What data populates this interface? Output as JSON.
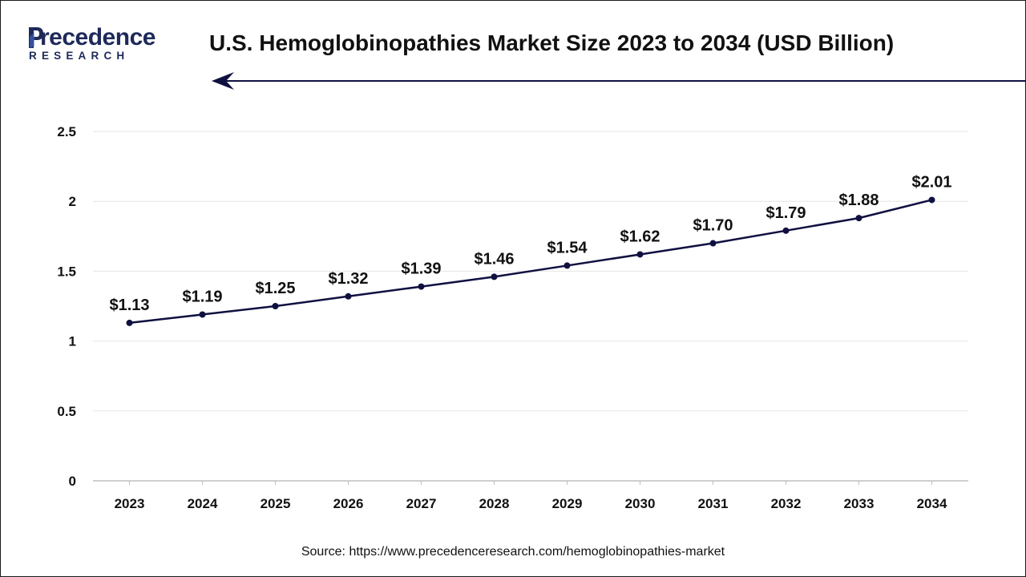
{
  "brand": {
    "name_main": "recedence",
    "name_sub": "RESEARCH",
    "logo_color": "#1e2a5a"
  },
  "source_label": "Source: https://www.precedenceresearch.com/hemoglobinopathies-market",
  "colors": {
    "line": "#0f1040",
    "grid": "#e6e6e6",
    "axis": "#bfbfbf",
    "text": "#111111"
  },
  "chart_data": {
    "type": "line",
    "title": "U.S. Hemoglobinopathies Market Size 2023 to 2034 (USD Billion)",
    "xlabel": "",
    "ylabel": "",
    "categories": [
      "2023",
      "2024",
      "2025",
      "2026",
      "2027",
      "2028",
      "2029",
      "2030",
      "2031",
      "2032",
      "2033",
      "2034"
    ],
    "series": [
      {
        "values": [
          1.13,
          1.19,
          1.25,
          1.32,
          1.39,
          1.46,
          1.54,
          1.62,
          1.7,
          1.79,
          1.88,
          2.01
        ],
        "labels": [
          "$1.13",
          "$1.19",
          "$1.25",
          "$1.32",
          "$1.39",
          "$1.46",
          "$1.54",
          "$1.62",
          "$1.70",
          "$1.79",
          "$1.88",
          "$2.01"
        ]
      }
    ],
    "ylim": [
      0,
      2.5
    ],
    "yticks": [
      "0",
      "0.5",
      "1",
      "1.5",
      "2",
      "2.5"
    ],
    "grid": true,
    "legend": "none"
  }
}
